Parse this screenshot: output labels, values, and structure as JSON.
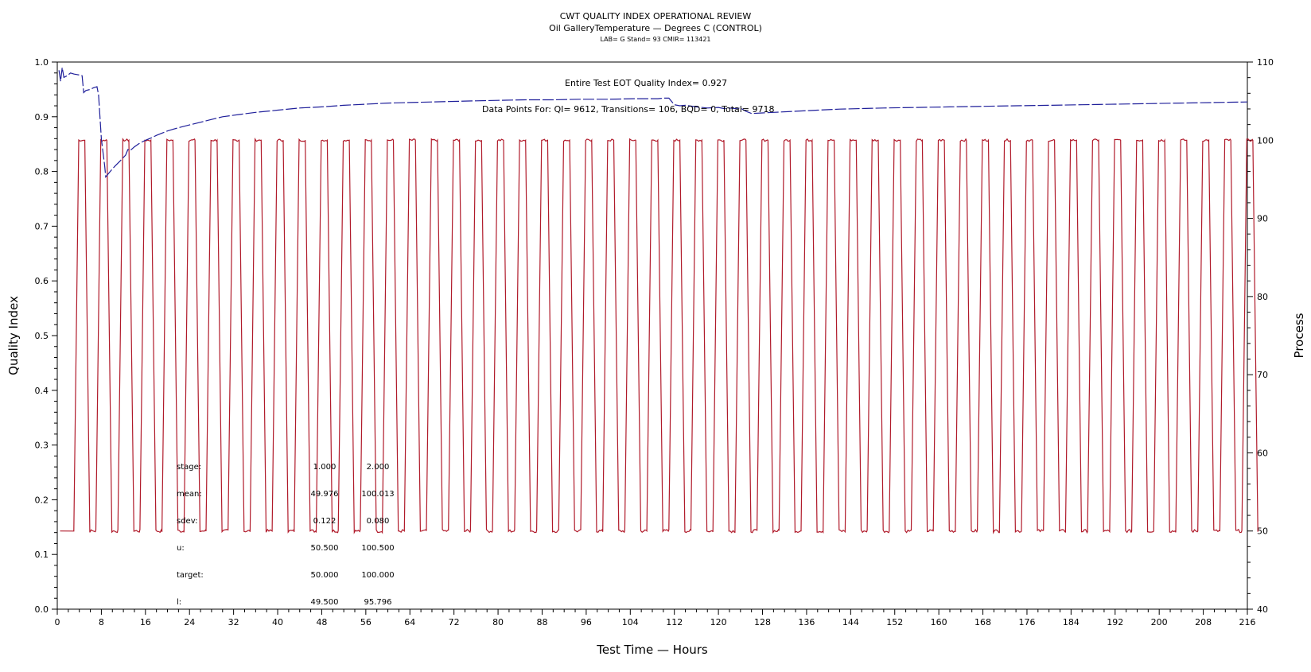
{
  "chart_data": {
    "type": "line",
    "title": "CWT QUALITY INDEX OPERATIONAL REVIEW",
    "subtitle": "Oil GalleryTemperature — Degrees C (CONTROL)",
    "subtitle2": "LAB= G Stand= 93 CMIR= 113421",
    "xlabel": "Test Time — Hours",
    "ylabel": "Quality Index",
    "y2label": "Process",
    "xlim": [
      0,
      216
    ],
    "ylim": [
      0,
      1.0
    ],
    "y2lim": [
      40,
      110
    ],
    "x_ticks": [
      0,
      8,
      16,
      24,
      32,
      40,
      48,
      56,
      64,
      72,
      80,
      88,
      96,
      104,
      112,
      120,
      128,
      136,
      144,
      152,
      160,
      168,
      176,
      184,
      192,
      200,
      208,
      216
    ],
    "y_ticks": [
      "0.0",
      "0.1",
      "0.2",
      "0.3",
      "0.4",
      "0.5",
      "0.6",
      "0.7",
      "0.8",
      "0.9",
      "1.0"
    ],
    "y2_ticks": [
      40,
      50,
      60,
      70,
      80,
      90,
      100,
      110
    ],
    "annotations": {
      "eot": "Entire Test EOT Quality Index=   0.927",
      "points": "Data Points For: QI=  9612, Transitions=   106, BQD=      0, Total=  9718"
    },
    "stats": {
      "columns": [
        "",
        "1",
        "2"
      ],
      "rows": [
        {
          "label": "stage:",
          "v1": "1.000",
          "v2": "2.000"
        },
        {
          "label": "mean:",
          "v1": "49.976",
          "v2": "100.013"
        },
        {
          "label": "sdev:",
          "v1": "0.122",
          "v2": "0.080"
        },
        {
          "label": "u:",
          "v1": "50.500",
          "v2": "100.500"
        },
        {
          "label": "target:",
          "v1": "50.000",
          "v2": "100.000"
        },
        {
          "label": "l:",
          "v1": "49.500",
          "v2": "95.796"
        }
      ]
    },
    "series": [
      {
        "axis": "left",
        "color": "#1f1f9a",
        "points": [
          [
            0.3,
            0.985
          ],
          [
            0.6,
            0.965
          ],
          [
            0.9,
            0.99
          ],
          [
            1.2,
            0.972
          ],
          [
            1.8,
            0.975
          ],
          [
            2.4,
            0.98
          ],
          [
            3.0,
            0.978
          ],
          [
            3.6,
            0.977
          ],
          [
            4.2,
            0.976
          ],
          [
            4.5,
            0.975
          ],
          [
            4.8,
            0.944
          ],
          [
            5.2,
            0.948
          ],
          [
            6.0,
            0.95
          ],
          [
            6.6,
            0.953
          ],
          [
            7.2,
            0.955
          ],
          [
            7.5,
            0.94
          ],
          [
            8.0,
            0.86
          ],
          [
            8.6,
            0.81
          ],
          [
            8.8,
            0.79
          ],
          [
            9.6,
            0.8
          ],
          [
            10.5,
            0.81
          ],
          [
            11.5,
            0.82
          ],
          [
            12.4,
            0.83
          ],
          [
            12.8,
            0.84
          ],
          [
            13.2,
            0.838
          ],
          [
            14,
            0.845
          ],
          [
            15,
            0.852
          ],
          [
            16,
            0.857
          ],
          [
            17,
            0.861
          ],
          [
            18,
            0.866
          ],
          [
            19,
            0.87
          ],
          [
            20,
            0.874
          ],
          [
            21,
            0.877
          ],
          [
            22,
            0.88
          ],
          [
            24,
            0.885
          ],
          [
            26,
            0.89
          ],
          [
            28,
            0.895
          ],
          [
            30,
            0.9
          ],
          [
            33,
            0.904
          ],
          [
            36,
            0.908
          ],
          [
            40,
            0.912
          ],
          [
            44,
            0.916
          ],
          [
            48,
            0.918
          ],
          [
            52,
            0.921
          ],
          [
            56,
            0.923
          ],
          [
            60,
            0.925
          ],
          [
            64,
            0.926
          ],
          [
            68,
            0.927
          ],
          [
            72,
            0.928
          ],
          [
            76,
            0.929
          ],
          [
            80,
            0.93
          ],
          [
            85,
            0.931
          ],
          [
            90,
            0.931
          ],
          [
            95,
            0.932
          ],
          [
            100,
            0.932
          ],
          [
            105,
            0.933
          ],
          [
            109,
            0.933
          ],
          [
            110,
            0.934
          ],
          [
            111,
            0.934
          ],
          [
            112,
            0.922
          ],
          [
            113,
            0.92
          ],
          [
            114,
            0.921
          ],
          [
            116,
            0.918
          ],
          [
            118,
            0.916
          ],
          [
            120,
            0.917
          ],
          [
            121,
            0.915
          ],
          [
            122,
            0.916
          ],
          [
            123,
            0.915
          ],
          [
            124,
            0.916
          ],
          [
            125,
            0.91
          ],
          [
            126,
            0.906
          ],
          [
            128,
            0.907
          ],
          [
            130,
            0.908
          ],
          [
            134,
            0.91
          ],
          [
            138,
            0.912
          ],
          [
            142,
            0.914
          ],
          [
            146,
            0.915
          ],
          [
            150,
            0.916
          ],
          [
            156,
            0.917
          ],
          [
            162,
            0.918
          ],
          [
            168,
            0.919
          ],
          [
            174,
            0.92
          ],
          [
            180,
            0.921
          ],
          [
            186,
            0.922
          ],
          [
            192,
            0.923
          ],
          [
            198,
            0.924
          ],
          [
            204,
            0.925
          ],
          [
            210,
            0.926
          ],
          [
            216,
            0.927
          ]
        ]
      },
      {
        "axis": "right",
        "color": "#b01a2a",
        "cycle_hours": 4,
        "low_level": 50,
        "high_level": 100,
        "first_rise": 3.0,
        "high_duration": 2.0,
        "ramp": 0.9,
        "last_hour": 216
      }
    ]
  }
}
